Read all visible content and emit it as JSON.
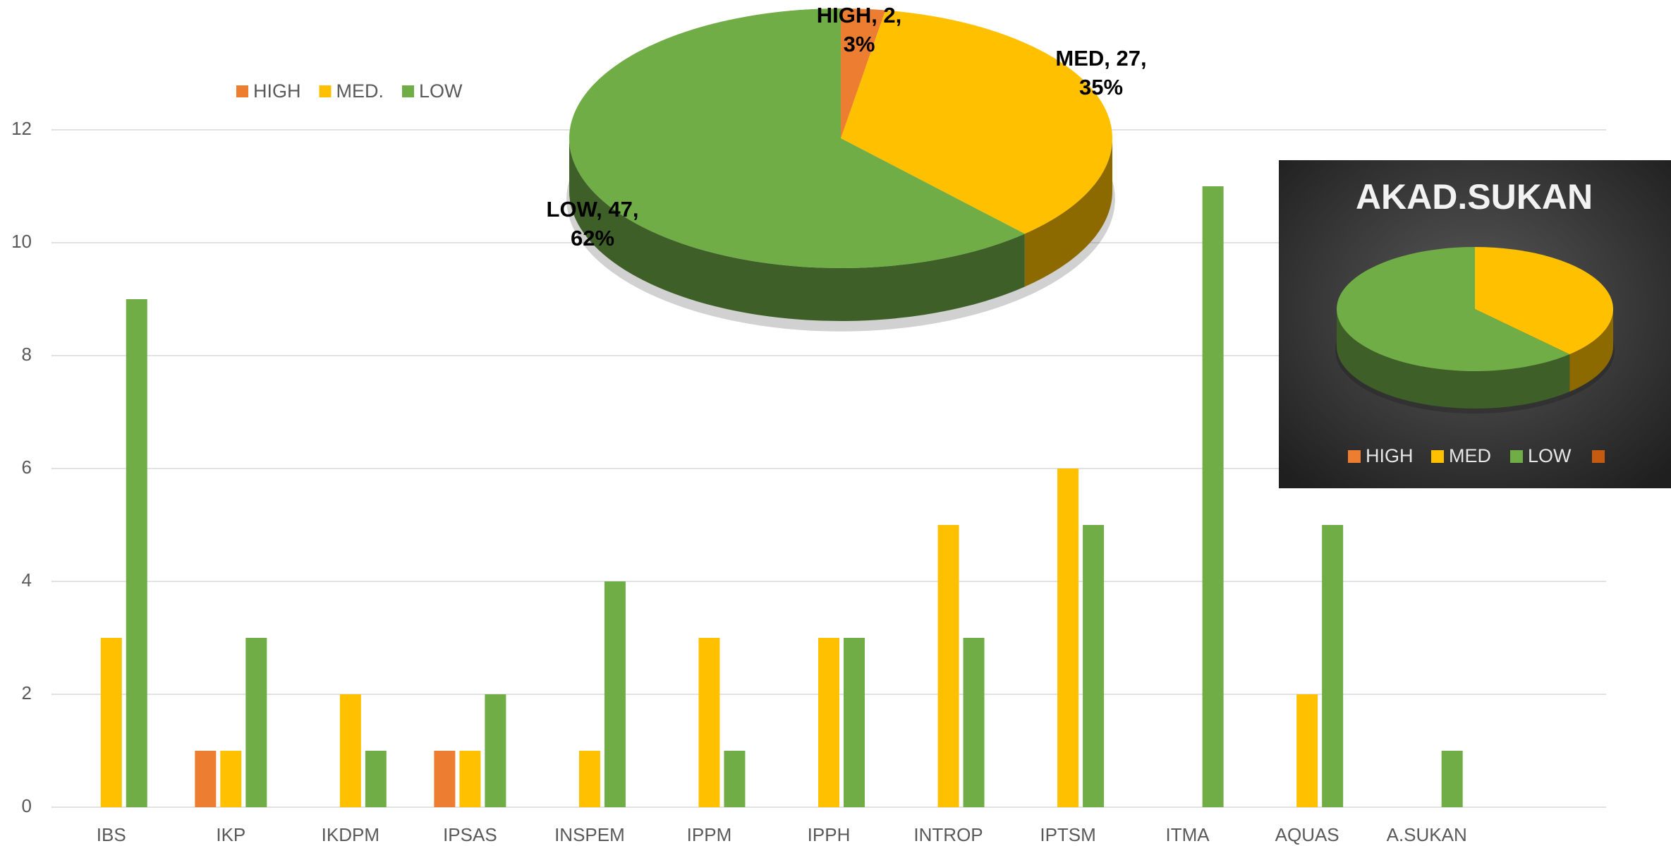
{
  "chart_data": [
    {
      "type": "bar",
      "categories": [
        "IBS",
        "IKP",
        "IKDPM",
        "IPSAS",
        "INSPEM",
        "IPPM",
        "IPPH",
        "INTROP",
        "IPTSM",
        "ITMA",
        "AQUAS",
        "A.SUKAN"
      ],
      "series": [
        {
          "name": "HIGH",
          "color": "#ed7d31",
          "values": [
            0,
            1,
            0,
            1,
            0,
            0,
            0,
            0,
            0,
            0,
            0,
            0
          ]
        },
        {
          "name": "MED.",
          "color": "#ffc000",
          "values": [
            3,
            1,
            2,
            1,
            1,
            3,
            3,
            5,
            6,
            0,
            2,
            0
          ]
        },
        {
          "name": "LOW",
          "color": "#70ad47",
          "values": [
            9,
            3,
            1,
            2,
            4,
            1,
            3,
            3,
            5,
            11,
            5,
            1
          ]
        }
      ],
      "ylim": [
        0,
        12
      ],
      "yticks": [
        0,
        2,
        4,
        6,
        8,
        10,
        12
      ],
      "grid": true,
      "legend": "top-left"
    },
    {
      "type": "pie",
      "categories": [
        "HIGH",
        "MED",
        "LOW"
      ],
      "values": [
        2,
        27,
        47
      ],
      "colors": [
        "#ed7d31",
        "#ffc000",
        "#70ad47"
      ],
      "labels": [
        [
          "HIGH, 2,",
          "3%"
        ],
        [
          "MED, 27,",
          "35%"
        ],
        [
          "LOW, 47,",
          "62%"
        ]
      ]
    },
    {
      "type": "pie",
      "title": "AKAD.SUKAN",
      "categories": [
        "HIGH",
        "MED",
        "LOW",
        null
      ],
      "values": [
        0,
        38,
        62,
        0
      ],
      "colors": [
        "#ed7d31",
        "#ffc000",
        "#70ad47",
        "#c55a11"
      ],
      "legend": "bottom"
    }
  ]
}
